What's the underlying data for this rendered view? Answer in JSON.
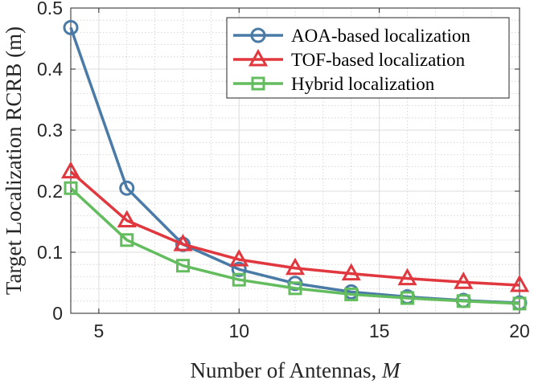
{
  "chart_data": {
    "type": "line",
    "title": "",
    "xlabel_text": "Number of Antennas, ",
    "xlabel_var": "M",
    "ylabel": "Target Localization RCRB (m)",
    "xlim": [
      4,
      20
    ],
    "ylim": [
      0,
      0.5
    ],
    "grid": true,
    "minor_grid": true,
    "legend_position": "top-right",
    "xticks": [
      5,
      10,
      15,
      20
    ],
    "xtick_labels": [
      "5",
      "10",
      "15",
      "20"
    ],
    "yticks": [
      0,
      0.1,
      0.2,
      0.3,
      0.4,
      0.5
    ],
    "ytick_labels": [
      "0",
      "0.1",
      "0.2",
      "0.3",
      "0.4",
      "0.5"
    ],
    "x": [
      4,
      6,
      8,
      10,
      12,
      14,
      16,
      18,
      20
    ],
    "series": [
      {
        "name": "AOA-based localization",
        "color": "#4a7ba7",
        "marker": "circle",
        "values": [
          0.468,
          0.205,
          0.113,
          0.072,
          0.049,
          0.035,
          0.027,
          0.021,
          0.017
        ]
      },
      {
        "name": "TOF-based localization",
        "color": "#e0383e",
        "marker": "triangle",
        "values": [
          0.232,
          0.152,
          0.113,
          0.088,
          0.074,
          0.065,
          0.057,
          0.051,
          0.046
        ]
      },
      {
        "name": "Hybrid localization",
        "color": "#63bd5e",
        "marker": "square",
        "values": [
          0.205,
          0.12,
          0.078,
          0.055,
          0.041,
          0.031,
          0.025,
          0.02,
          0.016
        ]
      }
    ]
  }
}
